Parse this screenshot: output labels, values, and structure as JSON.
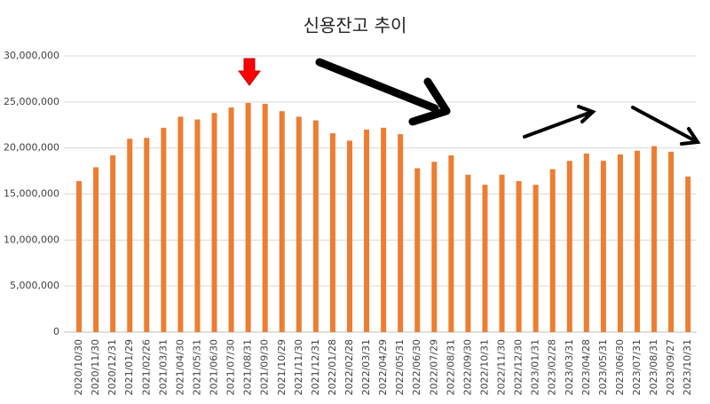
{
  "chart_data": {
    "type": "bar",
    "title": "신용잔고 추이",
    "categories": [
      "2020/10/30",
      "2020/11/30",
      "2020/12/31",
      "2021/01/29",
      "2021/02/26",
      "2021/03/31",
      "2021/04/30",
      "2021/05/31",
      "2021/06/30",
      "2021/07/30",
      "2021/08/31",
      "2021/09/30",
      "2021/10/29",
      "2021/11/30",
      "2021/12/31",
      "2022/01/28",
      "2022/02/28",
      "2022/03/31",
      "2022/04/29",
      "2022/05/31",
      "2022/06/30",
      "2022/07/29",
      "2022/08/31",
      "2022/09/30",
      "2022/10/31",
      "2022/11/30",
      "2022/12/30",
      "2023/01/31",
      "2023/02/28",
      "2023/03/31",
      "2023/04/28",
      "2023/05/31",
      "2023/06/30",
      "2023/07/31",
      "2023/08/31",
      "2023/09/27",
      "2023/10/31"
    ],
    "values": [
      16400000,
      17900000,
      19200000,
      21000000,
      21100000,
      22200000,
      23400000,
      23100000,
      23800000,
      24400000,
      24900000,
      24800000,
      24000000,
      23400000,
      23000000,
      21600000,
      20800000,
      22000000,
      22200000,
      21500000,
      17800000,
      18500000,
      19200000,
      17100000,
      16000000,
      17100000,
      16400000,
      16000000,
      17700000,
      18600000,
      19400000,
      18600000,
      19300000,
      19700000,
      20200000,
      19600000,
      16900000
    ],
    "color": "#ed7d31",
    "ylim": [
      0,
      30000000
    ],
    "yticks": [
      0,
      {
        "value": 5000000,
        "label": "5,000,000"
      },
      {
        "value": 10000000,
        "label": "10,000,000"
      },
      {
        "value": 15000000,
        "label": "15,000,000"
      },
      {
        "value": 20000000,
        "label": "20,000,000"
      },
      {
        "value": 25000000,
        "label": "25,000,000"
      },
      {
        "value": 30000000,
        "label": "30,000,000"
      }
    ],
    "grid": true
  }
}
